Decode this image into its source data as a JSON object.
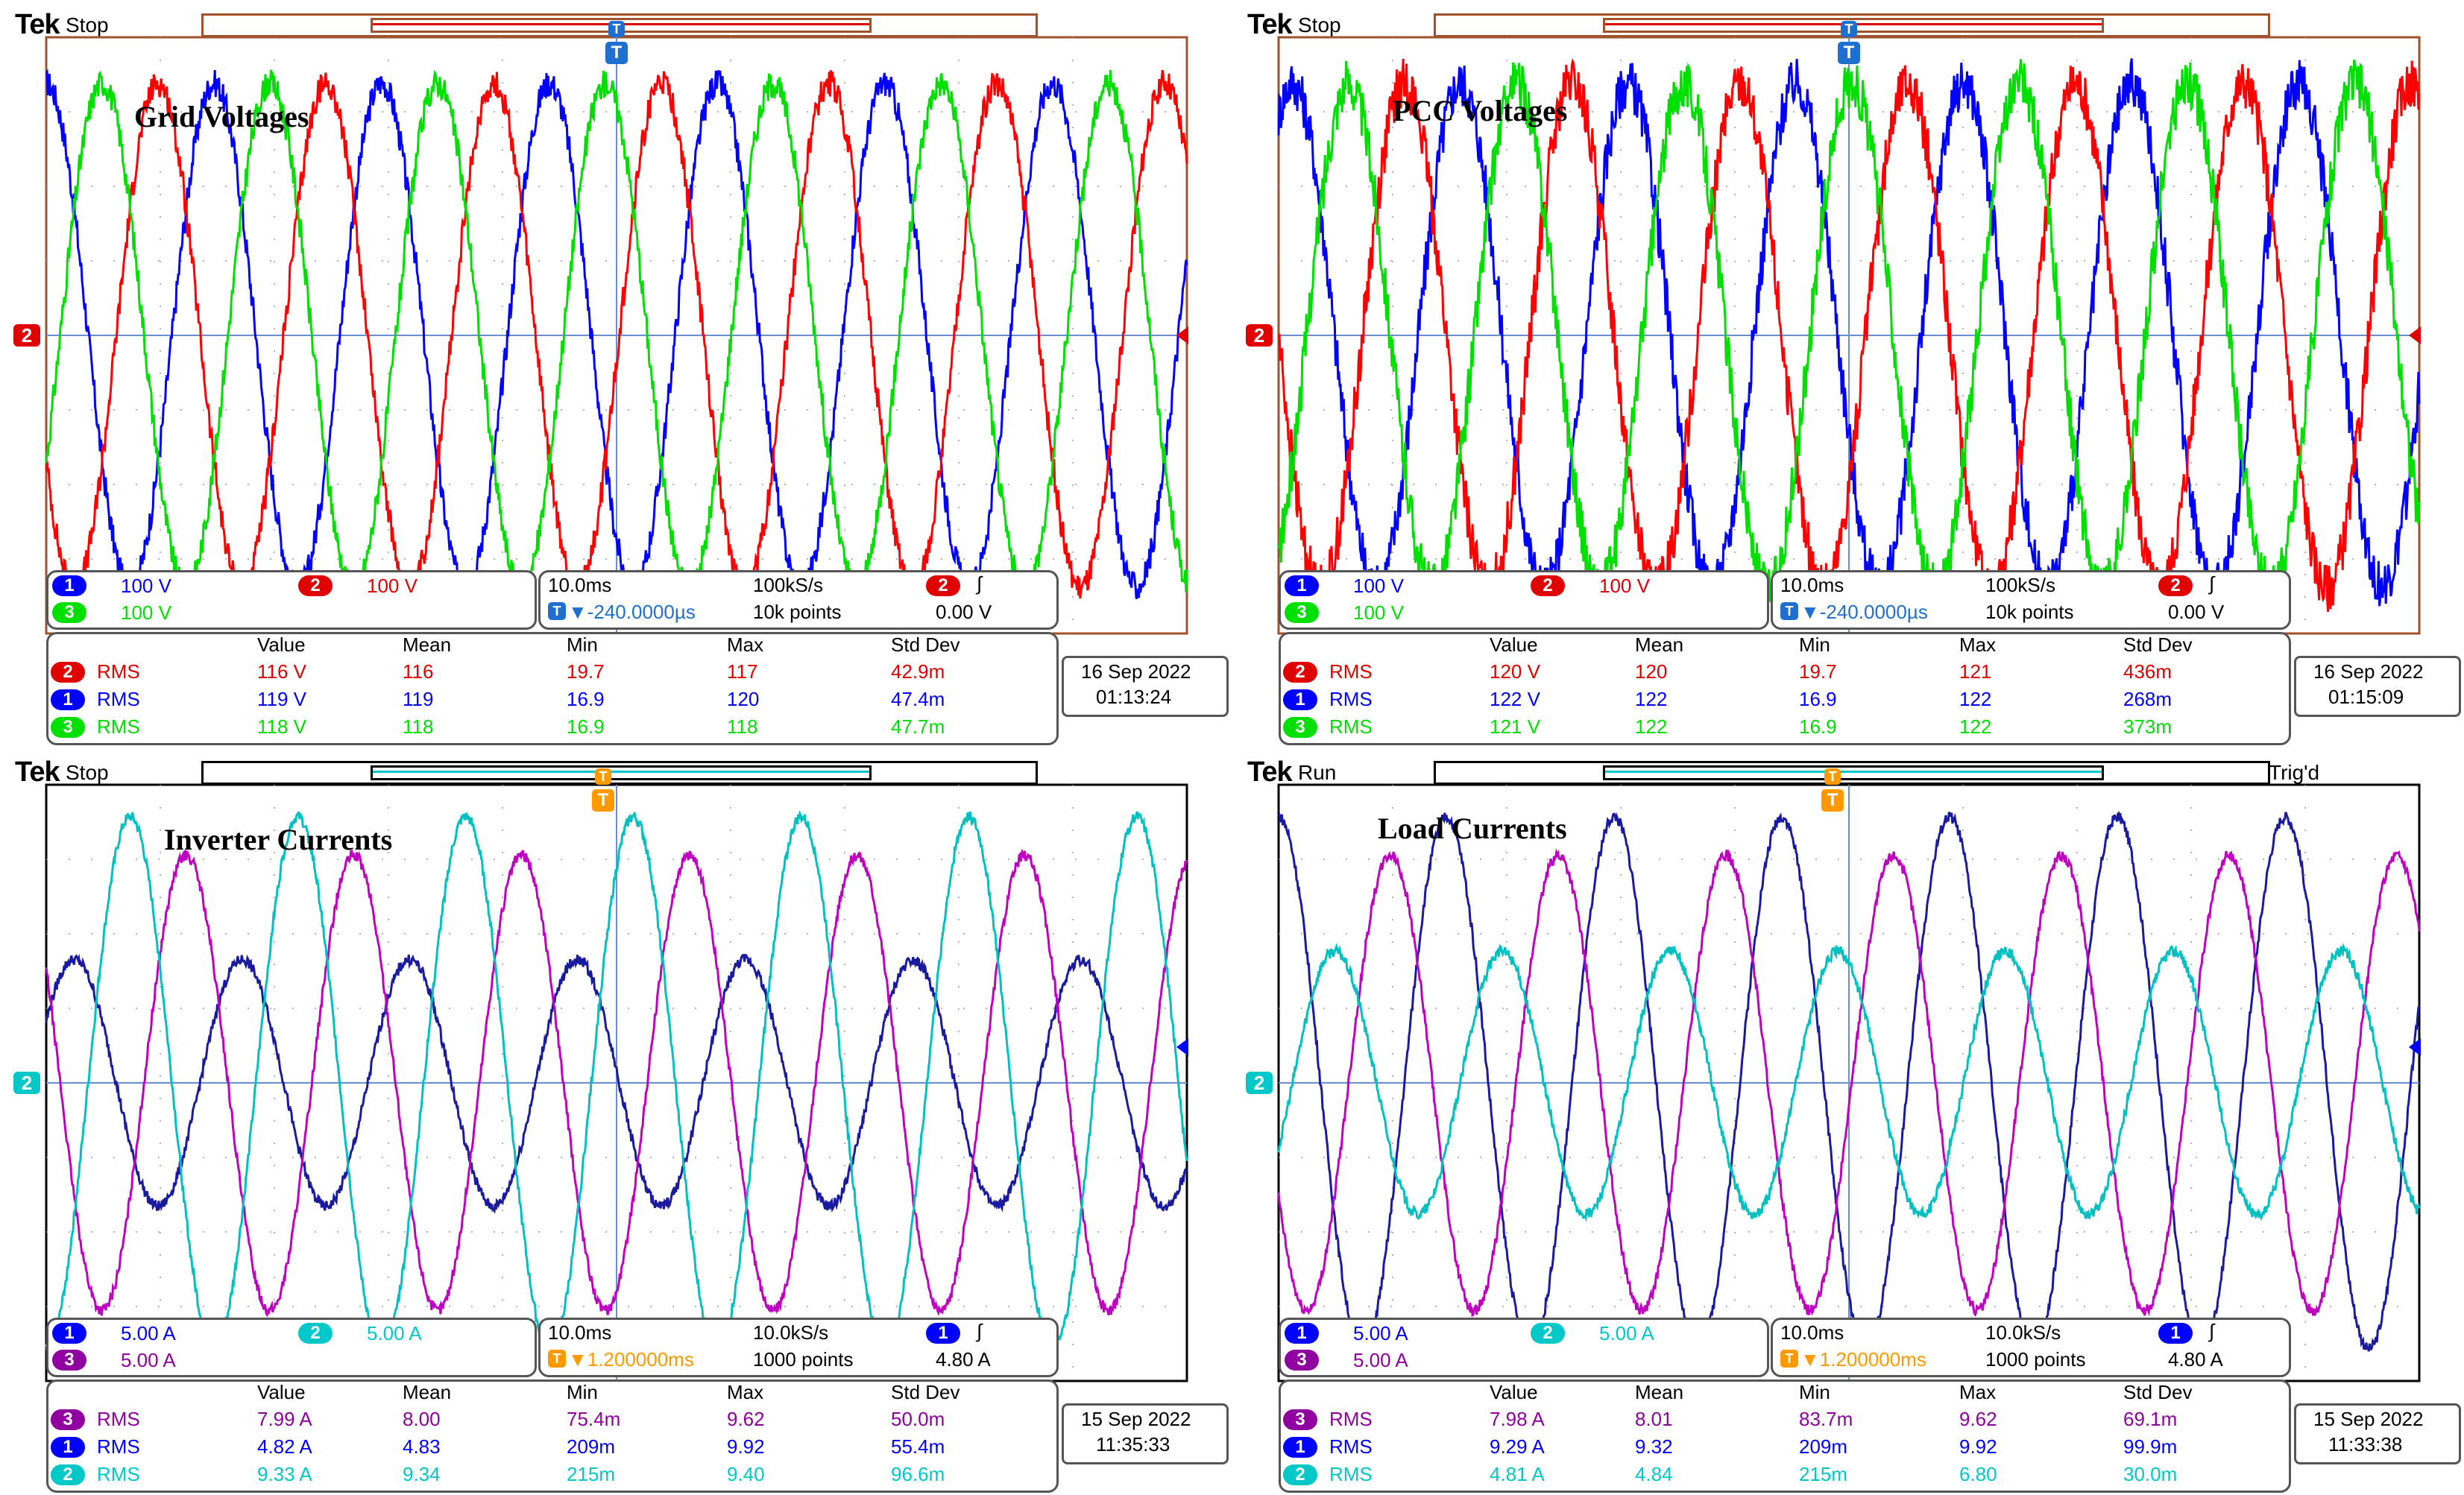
{
  "scopes": [
    {
      "id": "grid-voltages",
      "brand": "Tek",
      "state": "Stop",
      "trig_status": "",
      "trigger_marker": "T",
      "trigger_color": "#1e6fd0",
      "title": "Grid Voltages",
      "channel_marker": "2",
      "channel_marker_color": "#e00000",
      "waves": [
        {
          "color": "#0000ff",
          "amp": 0.92,
          "phase": 90,
          "noise": 0.05
        },
        {
          "color": "#ff0000",
          "amp": 0.92,
          "phase": 210,
          "noise": 0.05
        },
        {
          "color": "#00e000",
          "amp": 0.92,
          "phase": 330,
          "noise": 0.05
        }
      ],
      "scale": {
        "row1": [
          {
            "ch": "1",
            "color": "#0000ff",
            "value": "100 V"
          },
          {
            "ch": "2",
            "color": "#e00000",
            "value": "100 V"
          }
        ],
        "row2": [
          {
            "ch": "3",
            "color": "#00e000",
            "value": "100 V"
          }
        ]
      },
      "timebase": {
        "time": "10.0ms",
        "rate": "100kS/s",
        "trig_ch": "2",
        "trig_color": "#e00000",
        "slope": "∫",
        "delay": "▼-240.0000µs",
        "points": "10k points",
        "level": "0.00 V",
        "delay_color": "#1e6fd0"
      },
      "meas_headers": [
        "Value",
        "Mean",
        "Min",
        "Max",
        "Std Dev"
      ],
      "meas_rows": [
        {
          "ch": "2",
          "color": "#e00000",
          "label": "RMS",
          "value": "116 V",
          "mean": "116",
          "min": "19.7",
          "max": "117",
          "std": "42.9m"
        },
        {
          "ch": "1",
          "color": "#0000ff",
          "label": "RMS",
          "value": "119 V",
          "mean": "119",
          "min": "16.9",
          "max": "120",
          "std": "47.4m"
        },
        {
          "ch": "3",
          "color": "#00e000",
          "label": "RMS",
          "value": "118 V",
          "mean": "118",
          "min": "16.9",
          "max": "118",
          "std": "47.7m"
        }
      ],
      "date": "16 Sep  2022",
      "time": "01:13:24"
    },
    {
      "id": "pcc-voltages",
      "brand": "Tek",
      "state": "Stop",
      "trig_status": "",
      "trigger_marker": "T",
      "trigger_color": "#1e6fd0",
      "title": "PCC Voltages",
      "channel_marker": "2",
      "channel_marker_color": "#e00000",
      "waves": [
        {
          "color": "#0000ff",
          "amp": 0.92,
          "phase": 60,
          "noise": 0.09
        },
        {
          "color": "#ff0000",
          "amp": 0.92,
          "phase": 180,
          "noise": 0.09
        },
        {
          "color": "#00e000",
          "amp": 0.92,
          "phase": 300,
          "noise": 0.09
        }
      ],
      "scale": {
        "row1": [
          {
            "ch": "1",
            "color": "#0000ff",
            "value": "100 V"
          },
          {
            "ch": "2",
            "color": "#e00000",
            "value": "100 V"
          }
        ],
        "row2": [
          {
            "ch": "3",
            "color": "#00e000",
            "value": "100 V"
          }
        ]
      },
      "timebase": {
        "time": "10.0ms",
        "rate": "100kS/s",
        "trig_ch": "2",
        "trig_color": "#e00000",
        "slope": "∫",
        "delay": "▼-240.0000µs",
        "points": "10k points",
        "level": "0.00 V",
        "delay_color": "#1e6fd0"
      },
      "meas_headers": [
        "Value",
        "Mean",
        "Min",
        "Max",
        "Std Dev"
      ],
      "meas_rows": [
        {
          "ch": "2",
          "color": "#e00000",
          "label": "RMS",
          "value": "120 V",
          "mean": "120",
          "min": "19.7",
          "max": "121",
          "std": "436m"
        },
        {
          "ch": "1",
          "color": "#0000ff",
          "label": "RMS",
          "value": "122 V",
          "mean": "122",
          "min": "16.9",
          "max": "122",
          "std": "268m"
        },
        {
          "ch": "3",
          "color": "#00e000",
          "label": "RMS",
          "value": "121 V",
          "mean": "122",
          "min": "16.9",
          "max": "122",
          "std": "373m"
        }
      ],
      "date": "16 Sep  2022",
      "time": "01:15:09"
    },
    {
      "id": "inverter-currents",
      "brand": "Tek",
      "state": "Stop",
      "trig_status": "",
      "trigger_marker": "T",
      "trigger_color": "#ff9900",
      "title": "Inverter Currents",
      "channel_marker": "2",
      "channel_marker_color": "#00c8c8",
      "waves": [
        {
          "color": "#1a1aa0",
          "amp": 0.45,
          "phase": 30,
          "noise": 0.02
        },
        {
          "color": "#c000c0",
          "amp": 0.83,
          "phase": 150,
          "noise": 0.02
        },
        {
          "color": "#00c0c0",
          "amp": 0.97,
          "phase": 270,
          "noise": 0.02
        }
      ],
      "scale": {
        "row1": [
          {
            "ch": "1",
            "color": "#0000ff",
            "value": "5.00 A"
          },
          {
            "ch": "2",
            "color": "#00c8c8",
            "value": "5.00 A"
          }
        ],
        "row2": [
          {
            "ch": "3",
            "color": "#9000a0",
            "value": "5.00 A"
          }
        ]
      },
      "timebase": {
        "time": "10.0ms",
        "rate": "10.0kS/s",
        "trig_ch": "1",
        "trig_color": "#0000ff",
        "slope": "∫",
        "delay": "▼1.200000ms",
        "points": "1000 points",
        "level": "4.80 A",
        "delay_color": "#ff9900"
      },
      "meas_headers": [
        "Value",
        "Mean",
        "Min",
        "Max",
        "Std Dev"
      ],
      "meas_rows": [
        {
          "ch": "3",
          "color": "#9000a0",
          "label": "RMS",
          "value": "7.99 A",
          "mean": "8.00",
          "min": "75.4m",
          "max": "9.62",
          "std": "50.0m"
        },
        {
          "ch": "1",
          "color": "#0000ff",
          "label": "RMS",
          "value": "4.82 A",
          "mean": "4.83",
          "min": "209m",
          "max": "9.92",
          "std": "55.4m"
        },
        {
          "ch": "2",
          "color": "#00c8c8",
          "label": "RMS",
          "value": "9.33 A",
          "mean": "9.34",
          "min": "215m",
          "max": "9.40",
          "std": "96.6m"
        }
      ],
      "date": "15 Sep  2022",
      "time": "11:35:33"
    },
    {
      "id": "load-currents",
      "brand": "Tek",
      "state": "Run",
      "trig_status": "Trig'd",
      "trigger_marker": "T",
      "trigger_color": "#ff9900",
      "title": "Load Currents",
      "channel_marker": "2",
      "channel_marker_color": "#00c8c8",
      "waves": [
        {
          "color": "#1a1aa0",
          "amp": 0.97,
          "phase": 90,
          "noise": 0.02
        },
        {
          "color": "#c000c0",
          "amp": 0.83,
          "phase": 210,
          "noise": 0.02
        },
        {
          "color": "#00c0c0",
          "amp": 0.48,
          "phase": 330,
          "noise": 0.02
        }
      ],
      "scale": {
        "row1": [
          {
            "ch": "1",
            "color": "#0000ff",
            "value": "5.00 A"
          },
          {
            "ch": "2",
            "color": "#00c8c8",
            "value": "5.00 A"
          }
        ],
        "row2": [
          {
            "ch": "3",
            "color": "#9000a0",
            "value": "5.00 A"
          }
        ]
      },
      "timebase": {
        "time": "10.0ms",
        "rate": "10.0kS/s",
        "trig_ch": "1",
        "trig_color": "#0000ff",
        "slope": "∫",
        "delay": "▼1.200000ms",
        "points": "1000 points",
        "level": "4.80 A",
        "delay_color": "#ff9900"
      },
      "meas_headers": [
        "Value",
        "Mean",
        "Min",
        "Max",
        "Std Dev"
      ],
      "meas_rows": [
        {
          "ch": "3",
          "color": "#9000a0",
          "label": "RMS",
          "value": "7.98 A",
          "mean": "8.01",
          "min": "83.7m",
          "max": "9.62",
          "std": "69.1m"
        },
        {
          "ch": "1",
          "color": "#0000ff",
          "label": "RMS",
          "value": "9.29 A",
          "mean": "9.32",
          "min": "209m",
          "max": "9.92",
          "std": "99.9m"
        },
        {
          "ch": "2",
          "color": "#00c8c8",
          "label": "RMS",
          "value": "4.81 A",
          "mean": "4.84",
          "min": "215m",
          "max": "6.80",
          "std": "30.0m"
        }
      ],
      "date": "15 Sep  2022",
      "time": "11:33:38"
    }
  ]
}
